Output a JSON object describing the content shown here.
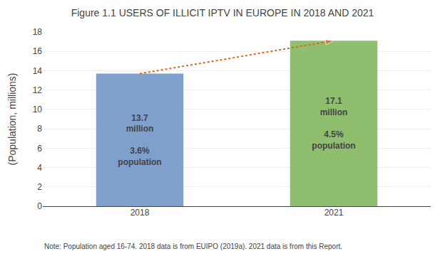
{
  "chart_data": {
    "type": "bar",
    "title": "Figure 1.1 USERS OF ILLICIT IPTV IN EUROPE IN 2018 AND 2021",
    "categories": [
      "2018",
      "2021"
    ],
    "values": [
      13.7,
      17.1
    ],
    "colors": [
      "#7f9fcc",
      "#8fbe6e"
    ],
    "data_labels": true,
    "value_labels": [
      "13.7\nmillion\n\n3.6%\npopulation",
      "17.1\nmillion\n\n4.5%\npopulation"
    ],
    "ylabel": "(Population, millions)",
    "ylim": [
      0,
      18
    ],
    "yticks": [
      0,
      2,
      4,
      6,
      8,
      10,
      12,
      14,
      16,
      18
    ],
    "grid": true,
    "arrow": {
      "from": "2018",
      "to": "2021",
      "color": "#e8621a"
    },
    "note": "Note: Population aged 16-74. 2018 data is from EUIPO (2019a). 2021 data is from this Report."
  }
}
